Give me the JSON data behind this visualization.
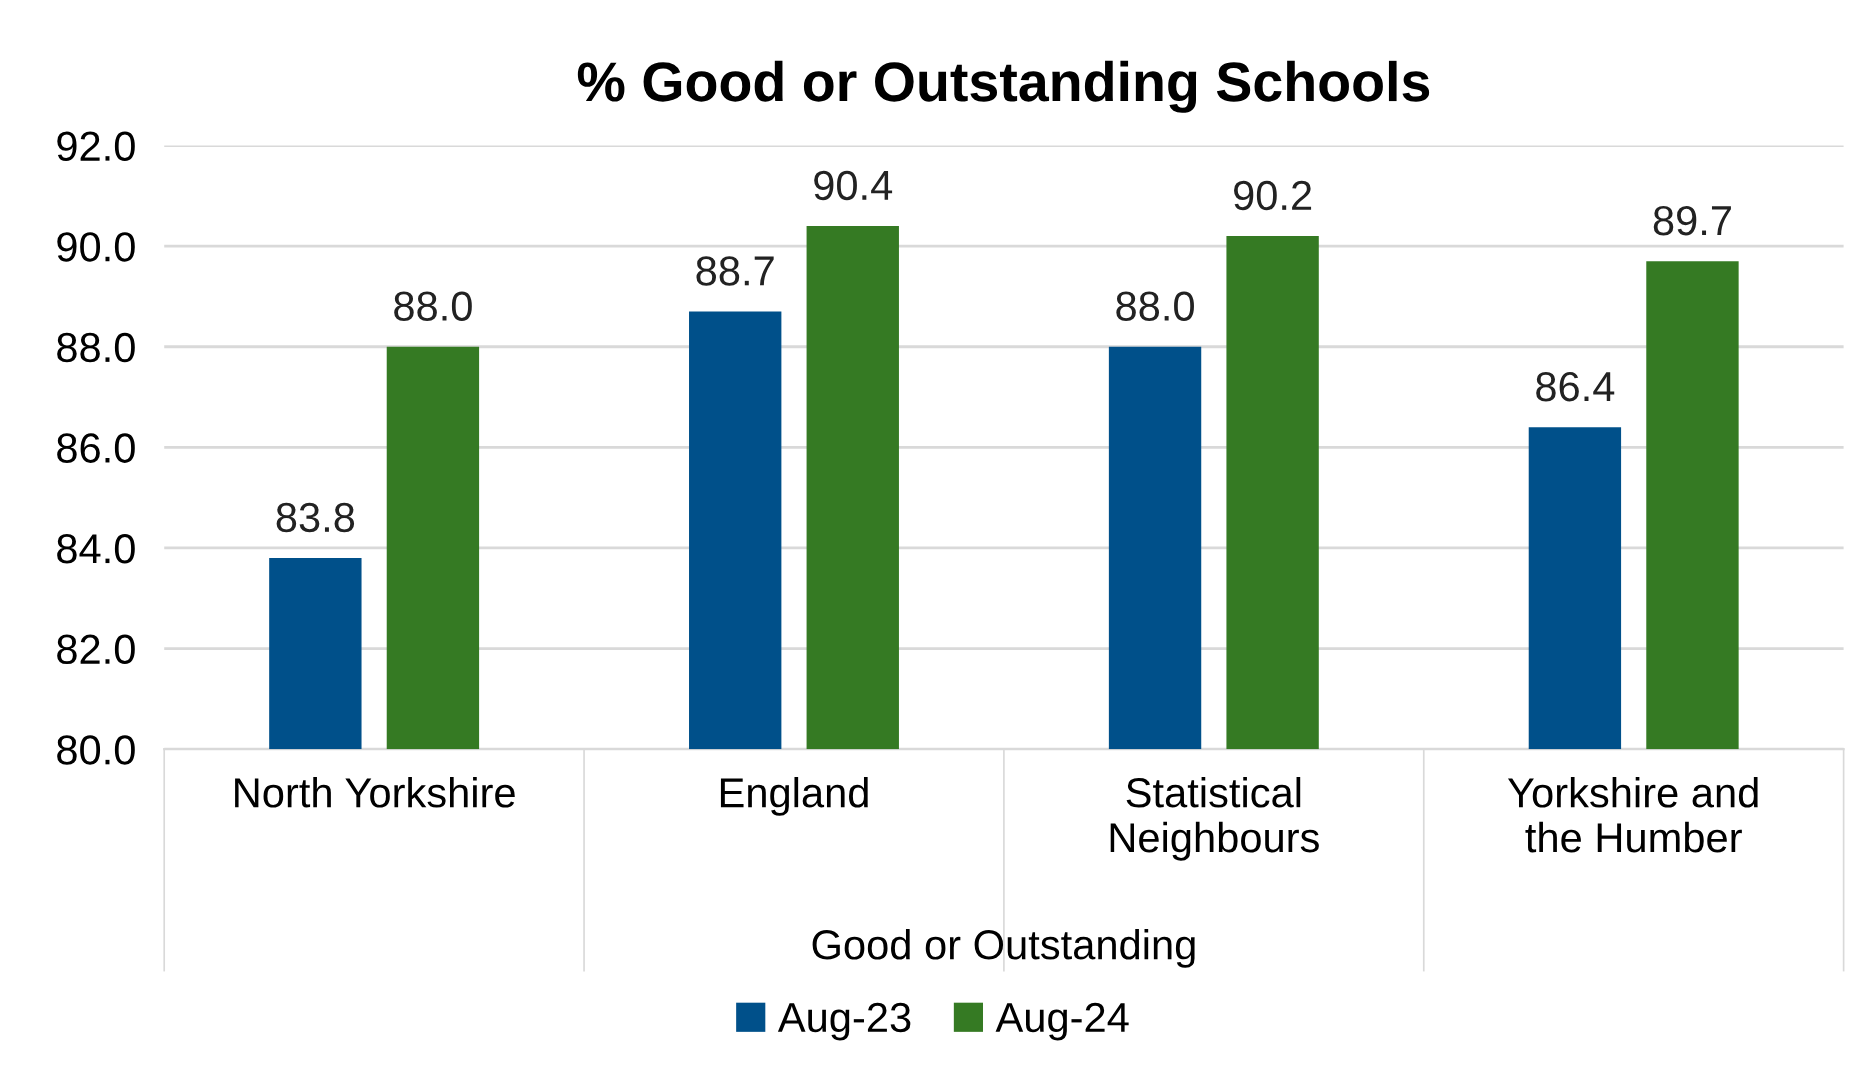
{
  "chart_data": {
    "type": "bar",
    "title": "% Good or Outstanding Schools",
    "xlabel": "Good or Outstanding",
    "categories": [
      "North Yorkshire",
      "England",
      "Statistical Neighbours",
      "Yorkshire and the Humber"
    ],
    "series": [
      {
        "name": "Aug-23",
        "color": "#00508a",
        "values": [
          83.8,
          88.7,
          88.0,
          86.4
        ],
        "value_labels": [
          "83.8",
          "88.7",
          "88.0",
          "86.4"
        ]
      },
      {
        "name": "Aug-24",
        "color": "#357a23",
        "values": [
          88.0,
          90.4,
          90.2,
          89.7
        ],
        "value_labels": [
          "88.0",
          "90.4",
          "90.2",
          "89.7"
        ]
      }
    ],
    "ylim": [
      80,
      92
    ],
    "yticks": [
      {
        "value": 80,
        "label": "80.0"
      },
      {
        "value": 82,
        "label": "82.0"
      },
      {
        "value": 84,
        "label": "84.0"
      },
      {
        "value": 86,
        "label": "86.0"
      },
      {
        "value": 88,
        "label": "88.0"
      },
      {
        "value": 90,
        "label": "90.0"
      },
      {
        "value": 92,
        "label": "92.0"
      }
    ],
    "grid": "y",
    "legend": "bottom"
  }
}
